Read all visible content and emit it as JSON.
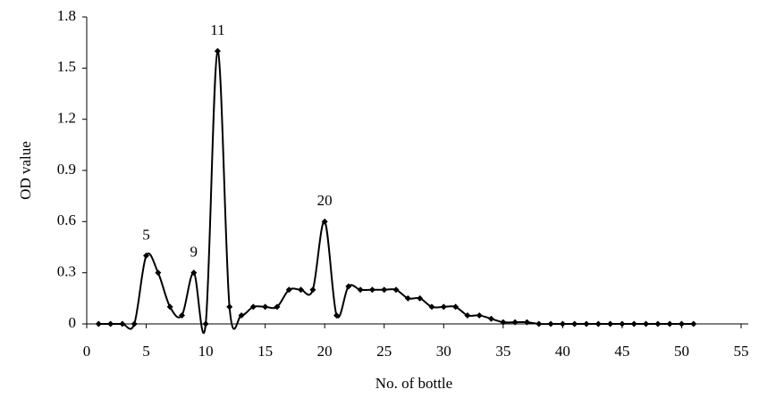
{
  "chart_data": {
    "type": "line",
    "smooth": true,
    "x_label": "No. of bottle",
    "y_label": "OD value",
    "x": [
      1,
      2,
      3,
      4,
      5,
      6,
      7,
      8,
      9,
      10,
      11,
      12,
      13,
      14,
      15,
      16,
      17,
      18,
      19,
      20,
      21,
      22,
      23,
      24,
      25,
      26,
      27,
      28,
      29,
      30,
      31,
      32,
      33,
      34,
      35,
      36,
      37,
      38,
      39,
      40,
      41,
      42,
      43,
      44,
      45,
      46,
      47,
      48,
      49,
      50,
      51
    ],
    "series": [
      {
        "color": "#000000",
        "values": [
          0,
          0,
          0,
          0,
          0.4,
          0.3,
          0.1,
          0.05,
          0.3,
          0,
          1.6,
          0.1,
          0.05,
          0.1,
          0.1,
          0.1,
          0.2,
          0.2,
          0.2,
          0.6,
          0.05,
          0.22,
          0.2,
          0.2,
          0.2,
          0.2,
          0.15,
          0.15,
          0.1,
          0.1,
          0.1,
          0.05,
          0.05,
          0.03,
          0.01,
          0.01,
          0.01,
          0,
          0,
          0,
          0,
          0,
          0,
          0,
          0,
          0,
          0,
          0,
          0,
          0,
          0
        ]
      }
    ],
    "annotations": [
      {
        "text": "5",
        "x": 5
      },
      {
        "text": "9",
        "x": 9
      },
      {
        "text": "11",
        "x": 11
      },
      {
        "text": "20",
        "x": 20
      }
    ],
    "xlim": [
      0,
      55
    ],
    "xticks": [
      0,
      5,
      10,
      15,
      20,
      25,
      30,
      35,
      40,
      45,
      50,
      55
    ],
    "ylim": [
      0,
      1.8
    ],
    "yticks": [
      0,
      0.3,
      0.6,
      0.9,
      1.2,
      1.5,
      1.8
    ]
  }
}
